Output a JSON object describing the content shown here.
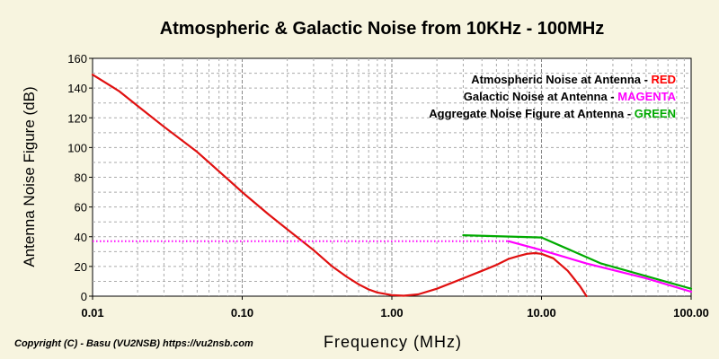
{
  "chart_data": {
    "type": "line",
    "title": "Atmospheric & Galactic Noise from 10KHz - 100MHz",
    "xlabel": "Frequency (MHz)",
    "ylabel": "Antenna Noise Figure (dB)",
    "x_scale": "log",
    "xlim": [
      0.01,
      100
    ],
    "ylim": [
      0,
      160
    ],
    "grid": true,
    "legend_position": "top-right",
    "x_ticks": [
      {
        "value": 0.01,
        "label": "0.01"
      },
      {
        "value": 0.1,
        "label": "0.10"
      },
      {
        "value": 1,
        "label": "1.00"
      },
      {
        "value": 10,
        "label": "10.00"
      },
      {
        "value": 100,
        "label": "100.00"
      }
    ],
    "y_ticks": [
      0,
      20,
      40,
      60,
      80,
      100,
      120,
      140,
      160
    ],
    "legend": [
      {
        "text": "Atmospheric Noise at Antenna - ",
        "color_word": "RED",
        "color": "#ff0000"
      },
      {
        "text": "Galactic Noise at Antenna - ",
        "color_word": "MAGENTA",
        "color": "#ff00ff"
      },
      {
        "text": "Aggregate Noise Figure at Antenna - ",
        "color_word": "GREEN",
        "color": "#00aa00"
      }
    ],
    "series": [
      {
        "color": "#e01010",
        "style": "solid",
        "points": [
          [
            0.01,
            149
          ],
          [
            0.015,
            138
          ],
          [
            0.02,
            128
          ],
          [
            0.03,
            114
          ],
          [
            0.05,
            97
          ],
          [
            0.07,
            84
          ],
          [
            0.1,
            70
          ],
          [
            0.15,
            55
          ],
          [
            0.2,
            45
          ],
          [
            0.3,
            31
          ],
          [
            0.4,
            20
          ],
          [
            0.5,
            13
          ],
          [
            0.6,
            8
          ],
          [
            0.7,
            4.5
          ],
          [
            0.8,
            2.5
          ],
          [
            1.0,
            0.7
          ],
          [
            1.2,
            0.3
          ],
          [
            1.5,
            1.2
          ],
          [
            2,
            5
          ],
          [
            3,
            12
          ],
          [
            4,
            17
          ],
          [
            5,
            21
          ],
          [
            6,
            25
          ],
          [
            7,
            27
          ],
          [
            8,
            28.5
          ],
          [
            9,
            29
          ],
          [
            10,
            28.5
          ],
          [
            12,
            25.5
          ],
          [
            15,
            17
          ],
          [
            18,
            7
          ],
          [
            20,
            0
          ]
        ]
      },
      {
        "color": "#ff00ff",
        "style": "dotted",
        "points": [
          [
            0.01,
            37
          ],
          [
            1,
            37
          ],
          [
            6,
            37
          ]
        ]
      },
      {
        "color": "#ff00ff",
        "style": "solid",
        "points": [
          [
            6,
            37
          ],
          [
            10,
            31
          ],
          [
            20,
            22
          ],
          [
            50,
            12
          ],
          [
            100,
            3
          ]
        ]
      },
      {
        "color": "#00aa00",
        "style": "solid",
        "points": [
          [
            3,
            41
          ],
          [
            10,
            39.5
          ],
          [
            25,
            22
          ],
          [
            100,
            5
          ]
        ]
      }
    ]
  },
  "footer": {
    "copyright": "Copyright (C) - Basu (VU2NSB)  https://vu2nsb.com"
  }
}
